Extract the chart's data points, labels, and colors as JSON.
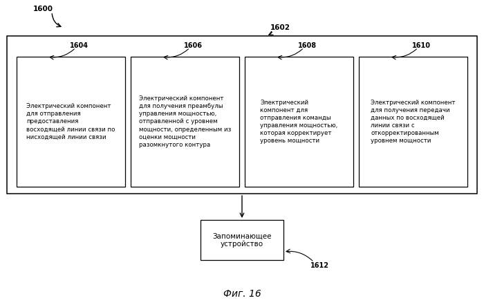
{
  "bg_color": "#ffffff",
  "fig_label": "1600",
  "outer_box_label": "1602",
  "boxes": [
    {
      "id": "1604",
      "text": "Электрический компонент\nдля отправления\nпредоставления\nвосходящей линии связи по\nнисходящей линии связи"
    },
    {
      "id": "1606",
      "text": "Электрический компонент\nдля получения преамбулы\nуправления мощностью,\nотправленной с уровнем\nмощности, определенным из\nоценки мощности\nразомкнутого контура"
    },
    {
      "id": "1608",
      "text": "Электрический\nкомпонент для\nотправления команды\nуправления мощностью,\nкоторая корректирует\nуровень мощности"
    },
    {
      "id": "1610",
      "text": "Электрический компонент\nдля получения передачи\nданных по восходящей\nлинии связи с\nоткорректированным\nуровнем мощности"
    }
  ],
  "memory_box": {
    "id": "1612",
    "text": "Запоминающее\nустройство"
  },
  "caption": "Фиг. 16",
  "font_size_box": 6.2,
  "font_size_label": 7.0,
  "font_size_caption": 10
}
